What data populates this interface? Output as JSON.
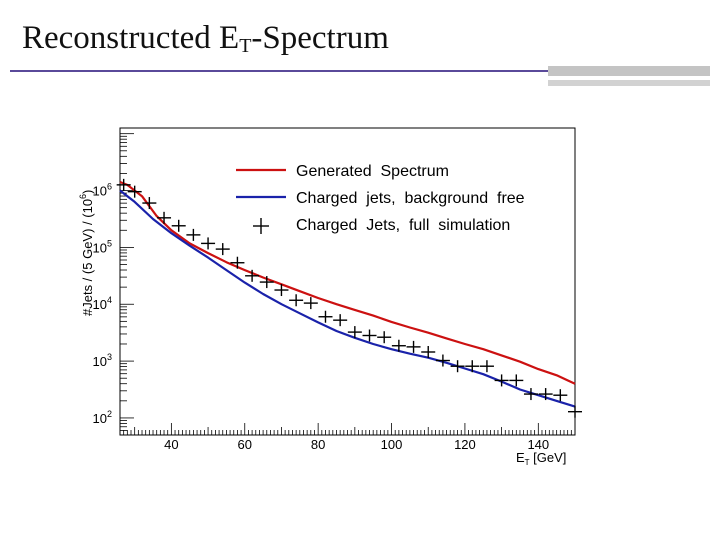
{
  "title": {
    "pre": "Reconstructed E",
    "sub": "T",
    "post": "-Spectrum"
  },
  "chart_data": {
    "type": "line",
    "title": "",
    "ylabel_parts": [
      "#Jets / (5 GeV) / (10",
      "6",
      ")"
    ],
    "xlabel_parts": [
      "E",
      "T",
      " [GeV]"
    ],
    "xlim": [
      26,
      150
    ],
    "ylim_log10": [
      1.7,
      7.1
    ],
    "yscale": "log",
    "x_ticks": [
      {
        "value": 40,
        "label": "40"
      },
      {
        "value": 60,
        "label": "60"
      },
      {
        "value": 80,
        "label": "80"
      },
      {
        "value": 100,
        "label": "100"
      },
      {
        "value": 120,
        "label": "120"
      },
      {
        "value": 140,
        "label": "140"
      }
    ],
    "y_ticks": [
      {
        "exp": 2,
        "base": "10",
        "sup": "2"
      },
      {
        "exp": 3,
        "base": "10",
        "sup": "3"
      },
      {
        "exp": 4,
        "base": "10",
        "sup": "4"
      },
      {
        "exp": 5,
        "base": "10",
        "sup": "5"
      },
      {
        "exp": 6,
        "base": "10",
        "sup": "6"
      }
    ],
    "legend": {
      "placement": "top-right",
      "entries": [
        {
          "label": "Generated  Spectrum",
          "style": "line",
          "color": "#cc1111"
        },
        {
          "label": "Charged  jets,  background  free",
          "style": "line",
          "color": "#1a22aa"
        },
        {
          "label": "Charged  Jets,  full  simulation",
          "style": "cross",
          "color": "#000000"
        }
      ]
    },
    "series": [
      {
        "name": "Generated Spectrum",
        "color": "#cc1111",
        "x": [
          26,
          28,
          32,
          36,
          40,
          45,
          50,
          55,
          60,
          65,
          70,
          75,
          80,
          85,
          90,
          95,
          100,
          105,
          110,
          115,
          120,
          125,
          130,
          135,
          140,
          145,
          150
        ],
        "log10y": [
          6.15,
          6.1,
          5.9,
          5.55,
          5.3,
          5.07,
          4.9,
          4.74,
          4.6,
          4.47,
          4.35,
          4.23,
          4.11,
          4.0,
          3.9,
          3.8,
          3.69,
          3.59,
          3.5,
          3.4,
          3.3,
          3.21,
          3.1,
          2.99,
          2.86,
          2.75,
          2.6
        ]
      },
      {
        "name": "Charged jets, background free",
        "color": "#1a22aa",
        "x": [
          26,
          30,
          35,
          40,
          45,
          50,
          55,
          60,
          65,
          70,
          75,
          80,
          85,
          90,
          95,
          100,
          105,
          110,
          115,
          120,
          125,
          130,
          135,
          140,
          145,
          150
        ],
        "log10y": [
          6.0,
          5.8,
          5.5,
          5.25,
          5.03,
          4.82,
          4.6,
          4.38,
          4.18,
          4.0,
          3.84,
          3.68,
          3.53,
          3.41,
          3.3,
          3.21,
          3.13,
          3.06,
          2.97,
          2.87,
          2.77,
          2.64,
          2.5,
          2.4,
          2.3,
          2.2
        ]
      },
      {
        "name": "Charged Jets, full simulation",
        "style": "cross",
        "x": [
          27,
          30,
          34,
          38,
          42,
          46,
          50,
          54,
          58,
          62,
          66,
          70,
          74,
          78,
          82,
          86,
          90,
          94,
          98,
          102,
          106,
          110,
          114,
          118,
          122,
          126,
          130,
          134,
          138,
          142,
          146,
          150
        ],
        "log10y": [
          6.1,
          5.98,
          5.78,
          5.52,
          5.38,
          5.22,
          5.07,
          4.97,
          4.73,
          4.5,
          4.39,
          4.25,
          4.07,
          4.02,
          3.78,
          3.72,
          3.51,
          3.45,
          3.42,
          3.27,
          3.25,
          3.16,
          3.01,
          2.91,
          2.91,
          2.91,
          2.66,
          2.66,
          2.42,
          2.42,
          2.4,
          2.11
        ]
      }
    ]
  }
}
